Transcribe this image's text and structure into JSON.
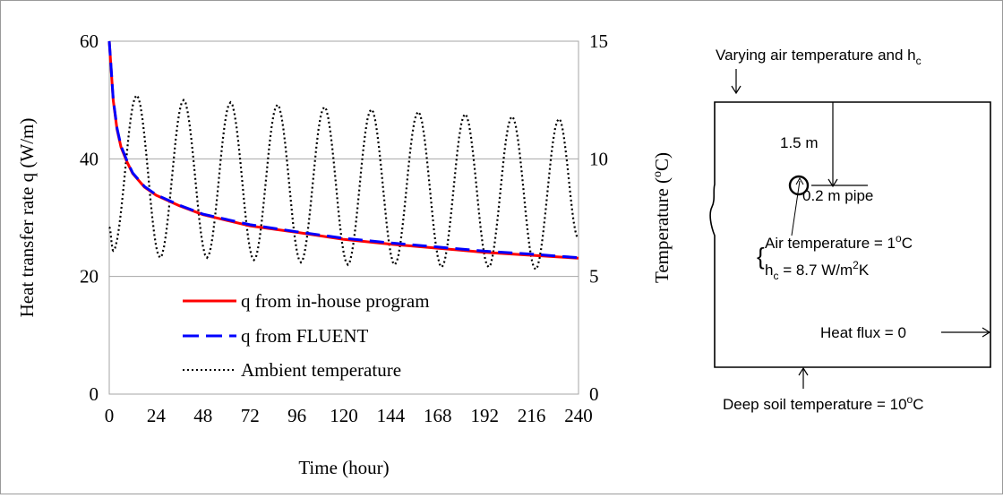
{
  "chart_data": {
    "type": "line",
    "xlabel": "Time (hour)",
    "ylabel_left": "Heat transfer rate q (W/m)",
    "ylabel_right": "Temperature (°C)",
    "x_range": [
      0,
      240
    ],
    "x_ticks": [
      0,
      24,
      48,
      72,
      96,
      120,
      144,
      168,
      192,
      216,
      240
    ],
    "y_left_range": [
      0,
      60
    ],
    "y_left_ticks": [
      0,
      20,
      40,
      60
    ],
    "y_right_range": [
      0,
      15
    ],
    "y_right_ticks": [
      0,
      5,
      10,
      15
    ],
    "grid": "horizontal",
    "legend_position": "bottom-left inside plot",
    "series": [
      {
        "name": "q from in-house program",
        "axis": "left",
        "color": "#ff0000",
        "style": "solid",
        "x": [
          0,
          1,
          2,
          4,
          6,
          9,
          12,
          18,
          24,
          36,
          48,
          72,
          96,
          120,
          144,
          168,
          192,
          216,
          240
        ],
        "y": [
          60,
          55,
          50,
          45,
          42,
          39.5,
          37.5,
          35.2,
          33.8,
          32,
          30.5,
          28.6,
          27.5,
          26.3,
          25.5,
          24.8,
          24.1,
          23.6,
          23.1
        ]
      },
      {
        "name": "q from FLUENT",
        "axis": "left",
        "color": "#0000ff",
        "style": "dashed",
        "x": [
          0,
          1,
          2,
          4,
          6,
          9,
          12,
          18,
          24,
          36,
          48,
          72,
          96,
          120,
          144,
          168,
          192,
          216,
          240
        ],
        "y": [
          60,
          55.2,
          50.2,
          45.2,
          42.2,
          39.7,
          37.6,
          35.3,
          33.9,
          32.1,
          30.6,
          28.8,
          27.6,
          26.5,
          25.7,
          25,
          24.3,
          23.8,
          23.2
        ]
      },
      {
        "name": "Ambient temperature",
        "axis": "right",
        "color": "#000000",
        "style": "dotted",
        "period_hours": 24,
        "peaks": [
          [
            14,
            12.7
          ],
          [
            38,
            12.5
          ],
          [
            62,
            12.4
          ],
          [
            86,
            12.3
          ],
          [
            110,
            12.2
          ],
          [
            134,
            12.1
          ],
          [
            158,
            12
          ],
          [
            182,
            11.9
          ],
          [
            206,
            11.8
          ],
          [
            230,
            11.7
          ]
        ],
        "troughs": [
          [
            2,
            6.1
          ],
          [
            26,
            5.8
          ],
          [
            50,
            5.8
          ],
          [
            74,
            5.7
          ],
          [
            98,
            5.6
          ],
          [
            122,
            5.5
          ],
          [
            146,
            5.5
          ],
          [
            170,
            5.4
          ],
          [
            194,
            5.4
          ],
          [
            218,
            5.3
          ]
        ]
      }
    ]
  },
  "diagram": {
    "top_label": "Varying air temperature and h",
    "top_label_sub": "c",
    "depth_label": "1.5 m",
    "pipe_label": "0.2 m  pipe",
    "air_temp_label_a": "Air temperature = 1",
    "air_temp_sup": "o",
    "air_temp_label_b": "C",
    "hc_label_h": "h",
    "hc_label_sub": "c",
    "hc_label_a": " = 8.7 W/m",
    "hc_label_sup": "2",
    "hc_label_b": "K",
    "heat_flux_label": "Heat flux = 0",
    "deep_soil_label_a": "Deep soil temperature = 10",
    "deep_soil_sup": "o",
    "deep_soil_label_b": "C"
  }
}
